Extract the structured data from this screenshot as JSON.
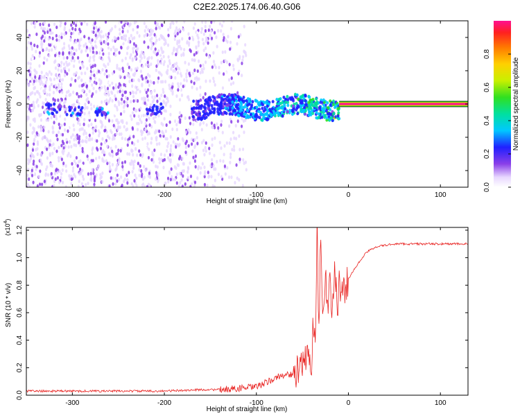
{
  "chart_data": [
    {
      "type": "heatmap",
      "title": "C2E2.2025.174.06.40.G06",
      "xlabel": "Height of straight line (km)",
      "ylabel": "Frequency (Hz)",
      "xlim": [
        -350,
        130
      ],
      "ylim": [
        -50,
        50
      ],
      "x_ticks": [
        -300,
        -200,
        -100,
        0,
        100
      ],
      "y_ticks": [
        -40,
        -20,
        0,
        20,
        40
      ],
      "colorbar": {
        "label": "Normalized spectral amplitude",
        "range": [
          0,
          1
        ],
        "ticks": [
          0.0,
          0.2,
          0.4,
          0.6,
          0.8
        ]
      },
      "features": [
        {
          "x_range": [
            -350,
            -110
          ],
          "description": "scattered low-amplitude noise (0.0-0.2)"
        },
        {
          "x_range": [
            -170,
            -10
          ],
          "frequency_hz": [
            -8,
            4
          ],
          "amplitude": [
            0.2,
            0.6
          ]
        },
        {
          "x_range": [
            -10,
            130
          ],
          "frequency_hz": 0,
          "amplitude": 1.0
        }
      ]
    },
    {
      "type": "line",
      "title": "",
      "xlabel": "Height of straight line (km)",
      "ylabel": "SNR (10 * v/v)",
      "y_multiplier": "(x10^4)",
      "xlim": [
        -350,
        130
      ],
      "ylim": [
        0,
        1.22
      ],
      "x_ticks": [
        -300,
        -200,
        -100,
        0,
        100
      ],
      "y_ticks": [
        0.0,
        0.2,
        0.4,
        0.6,
        0.8,
        1.0,
        1.2
      ],
      "series": [
        {
          "color": "#e8201e",
          "x": [
            -350,
            -300,
            -250,
            -200,
            -160,
            -140,
            -120,
            -100,
            -90,
            -80,
            -70,
            -60,
            -50,
            -45,
            -40,
            -38,
            -36,
            -34,
            -32,
            -30,
            -28,
            -25,
            -22,
            -20,
            -18,
            -15,
            -12,
            -10,
            -8,
            -5,
            -2,
            0,
            5,
            10,
            15,
            20,
            25,
            30,
            40,
            50,
            60,
            80,
            100,
            110,
            120,
            130
          ],
          "y": [
            0.03,
            0.03,
            0.03,
            0.03,
            0.04,
            0.04,
            0.05,
            0.06,
            0.09,
            0.12,
            0.15,
            0.15,
            0.2,
            0.3,
            0.25,
            0.55,
            0.4,
            1.2,
            0.5,
            1.2,
            0.55,
            0.9,
            0.55,
            0.85,
            0.55,
            0.95,
            0.6,
            0.85,
            0.7,
            0.75,
            0.8,
            0.85,
            0.9,
            0.95,
            1.0,
            1.04,
            1.06,
            1.08,
            1.09,
            1.1,
            1.1,
            1.1,
            1.1,
            1.1,
            1.1,
            1.1
          ]
        }
      ]
    }
  ],
  "colors": {
    "line": "#e8201e",
    "noise": "#8a3fe8"
  }
}
